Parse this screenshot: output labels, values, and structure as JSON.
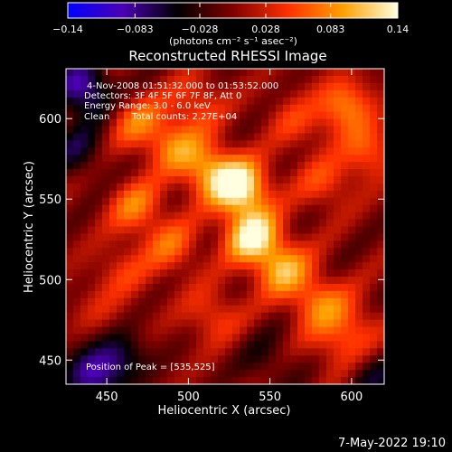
{
  "colorbar": {
    "tick_labels": [
      "−0.14",
      "−0.083",
      "−0.028",
      "0.028",
      "0.083",
      "0.14"
    ],
    "tick_values": [
      -0.14,
      -0.083,
      -0.028,
      0.028,
      0.083,
      0.14
    ],
    "range": [
      -0.14,
      0.14
    ],
    "unit_label": "(photons cm⁻² s⁻¹ asec⁻²)",
    "colors": [
      "#0000ff",
      "#4b00b4",
      "#000000",
      "#800000",
      "#ff3000",
      "#ffa000",
      "#ffffe0"
    ]
  },
  "chart_data": {
    "type": "heatmap",
    "title": "Reconstructed RHESSI Image",
    "xlabel": "Heliocentric X (arcsec)",
    "ylabel": "Heliocentric Y (arcsec)",
    "xlim": [
      425,
      620
    ],
    "ylim": [
      435,
      631
    ],
    "x_ticks": [
      450,
      500,
      550,
      600
    ],
    "y_ticks": [
      450,
      500,
      550,
      600
    ],
    "peak": [
      535,
      525
    ],
    "sources": [
      {
        "x": 532,
        "y": 557,
        "amp": 0.14
      },
      {
        "x": 539,
        "y": 527,
        "amp": 0.13
      },
      {
        "x": 512,
        "y": 568,
        "amp": 0.09
      },
      {
        "x": 557,
        "y": 507,
        "amp": 0.09
      },
      {
        "x": 490,
        "y": 584,
        "amp": 0.07
      },
      {
        "x": 578,
        "y": 487,
        "amp": 0.07
      },
      {
        "x": 468,
        "y": 598,
        "amp": 0.06
      },
      {
        "x": 600,
        "y": 472,
        "amp": 0.05
      },
      {
        "x": 596,
        "y": 608,
        "amp": 0.08
      },
      {
        "x": 610,
        "y": 580,
        "amp": 0.06
      },
      {
        "x": 468,
        "y": 545,
        "amp": 0.07
      },
      {
        "x": 490,
        "y": 520,
        "amp": 0.06
      },
      {
        "x": 583,
        "y": 560,
        "amp": 0.05
      },
      {
        "x": 515,
        "y": 478,
        "amp": 0.05
      },
      {
        "x": 505,
        "y": 610,
        "amp": 0.05
      },
      {
        "x": 565,
        "y": 598,
        "amp": 0.04
      },
      {
        "x": 460,
        "y": 505,
        "amp": 0.04
      },
      {
        "x": 590,
        "y": 458,
        "amp": 0.04
      },
      {
        "x": 445,
        "y": 480,
        "amp": 0.025
      },
      {
        "x": 440,
        "y": 440,
        "amp": -0.08
      },
      {
        "x": 436,
        "y": 618,
        "amp": -0.1
      },
      {
        "x": 458,
        "y": 452,
        "amp": -0.06
      },
      {
        "x": 432,
        "y": 580,
        "amp": -0.05
      },
      {
        "x": 612,
        "y": 440,
        "amp": -0.04
      },
      {
        "x": 548,
        "y": 450,
        "amp": -0.03
      }
    ]
  },
  "annotations": {
    "time_range": "4-Nov-2008 01:51:32.000 to 01:53:52.000",
    "detectors": "Detectors: 3F 4F 5F 6F 7F 8F, Att 0",
    "energy_range": "Energy Range: 3.0 - 6.0 keV",
    "method": "Clean",
    "total_counts": "Total counts: 2.27E+04",
    "peak_position": "Position of Peak = [535,525]"
  },
  "footer": {
    "date_stamp": "7-May-2022 19:10"
  }
}
